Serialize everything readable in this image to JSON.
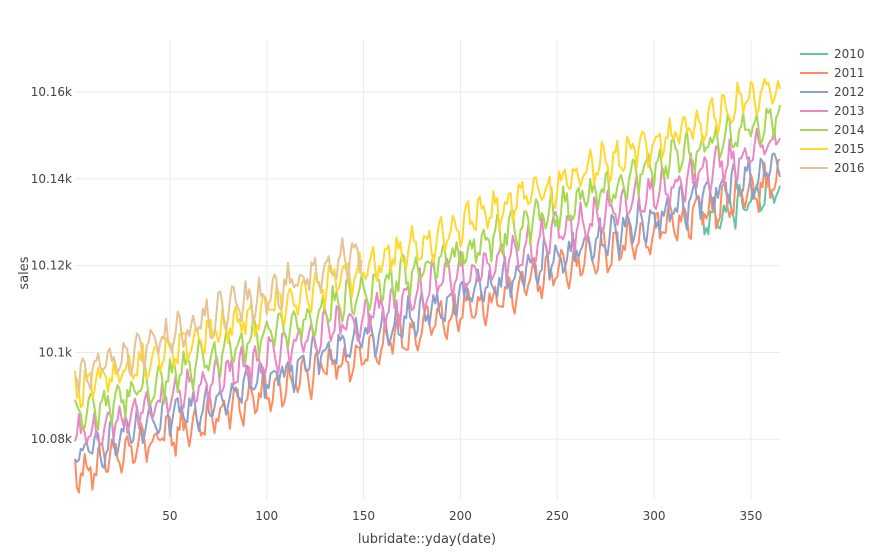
{
  "chart_data": {
    "type": "line",
    "xlabel": "lubridate::yday(date)",
    "ylabel": "sales",
    "xlim": [
      1,
      365
    ],
    "ylim": [
      10066,
      10172
    ],
    "x_ticks": [
      50,
      100,
      150,
      200,
      250,
      300,
      350
    ],
    "y_ticks": [
      10080,
      10100,
      10120,
      10140,
      10160
    ],
    "y_tick_labels": [
      "10.08k",
      "10.1k",
      "10.12k",
      "10.14k",
      "10.16k"
    ],
    "grid": true,
    "legend_position": "top-right",
    "series": [
      {
        "name": "2010",
        "color": "#66c2a5",
        "x_start": 325,
        "x_end": 365,
        "y_start": 10130,
        "y_end": 10138,
        "noise": 3.5
      },
      {
        "name": "2011",
        "color": "#fc8d62",
        "x_start": 1,
        "x_end": 365,
        "y_start": 10072,
        "y_end": 10140,
        "noise": 3.5
      },
      {
        "name": "2012",
        "color": "#8da0cb",
        "x_start": 1,
        "x_end": 365,
        "y_start": 10076,
        "y_end": 10143,
        "noise": 3.5
      },
      {
        "name": "2013",
        "color": "#e78ac3",
        "x_start": 1,
        "x_end": 365,
        "y_start": 10080,
        "y_end": 10149,
        "noise": 3.5
      },
      {
        "name": "2014",
        "color": "#a6d854",
        "x_start": 1,
        "x_end": 365,
        "y_start": 10085,
        "y_end": 10155,
        "noise": 3.5
      },
      {
        "name": "2015",
        "color": "#ffd92f",
        "x_start": 1,
        "x_end": 365,
        "y_start": 10091,
        "y_end": 10161,
        "noise": 3.5
      },
      {
        "name": "2016",
        "color": "#e5c494",
        "x_start": 1,
        "x_end": 149,
        "y_start": 10094,
        "y_end": 10123,
        "noise": 3.5
      }
    ]
  }
}
